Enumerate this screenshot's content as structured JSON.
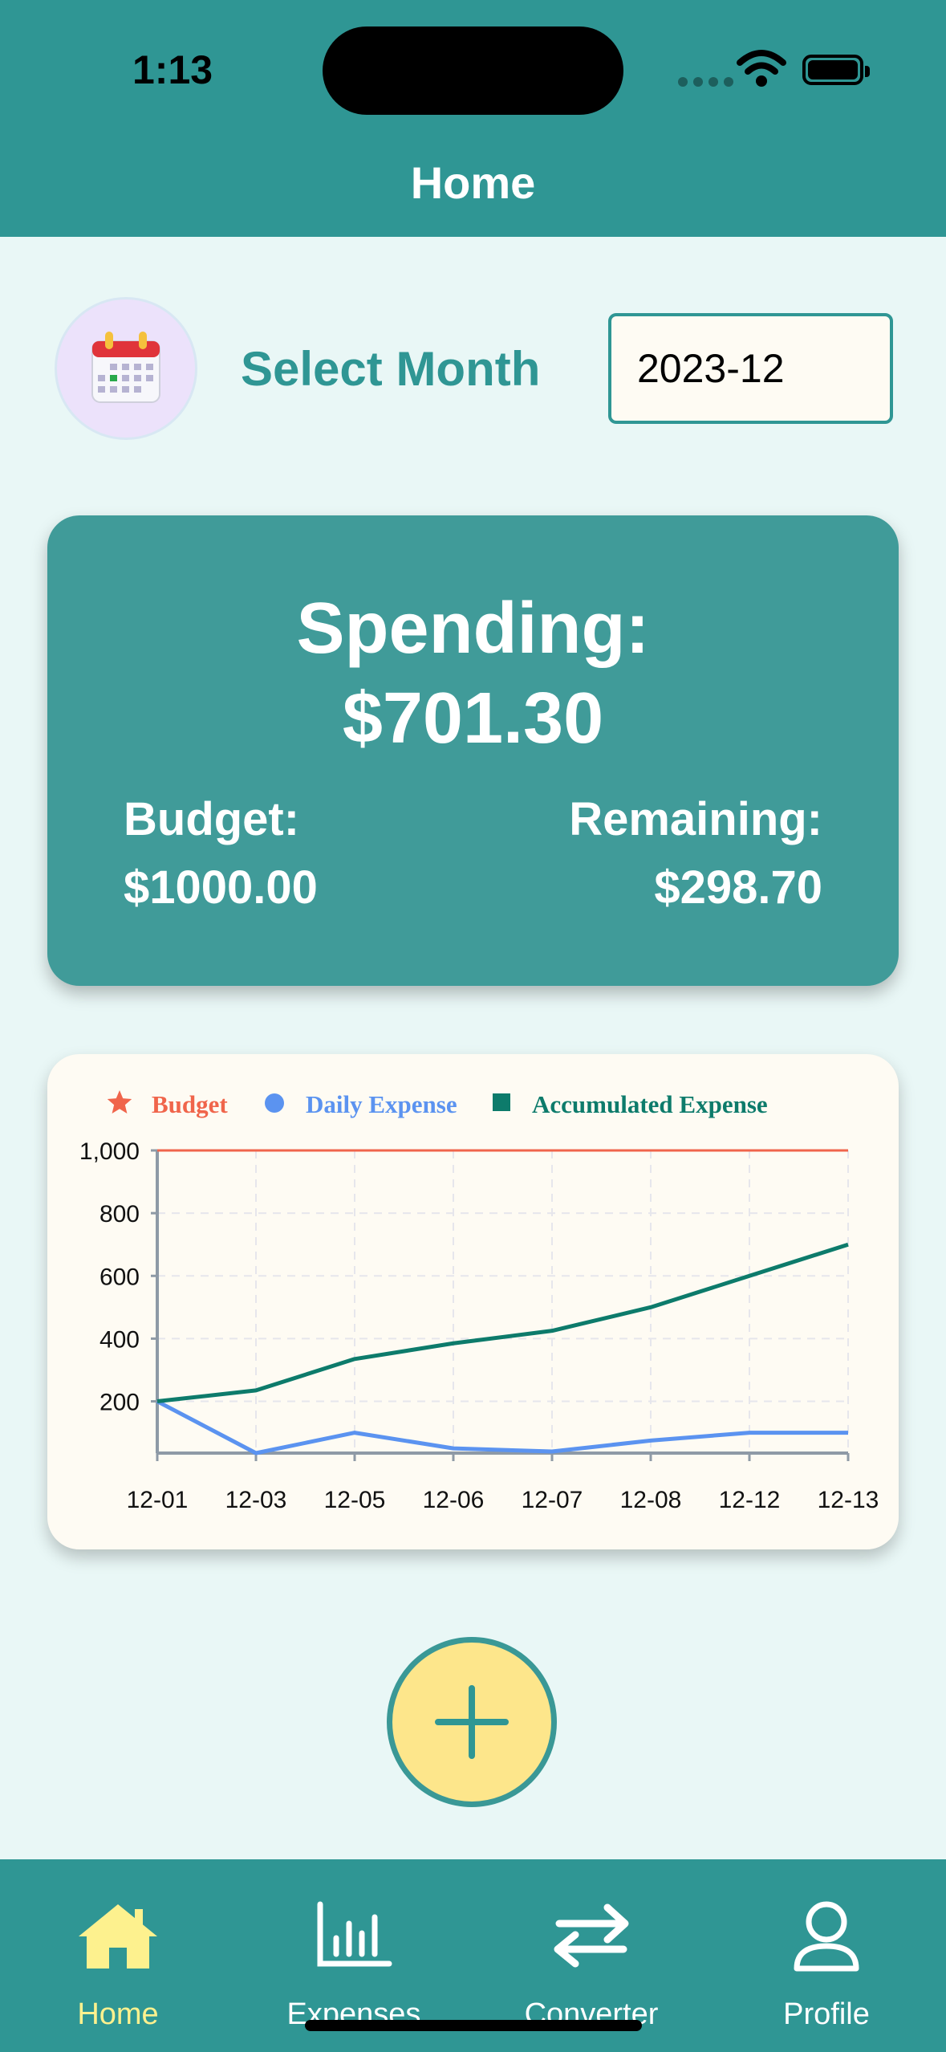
{
  "status_bar": {
    "time": "1:13"
  },
  "header": {
    "title": "Home"
  },
  "month_selector": {
    "label": "Select Month",
    "value": "2023-12",
    "icon": "calendar-icon"
  },
  "summary": {
    "spending_label": "Spending:",
    "spending_value": "$701.30",
    "budget_label": "Budget:",
    "budget_value": "$1000.00",
    "remaining_label": "Remaining:",
    "remaining_value": "$298.70"
  },
  "colors": {
    "primary": "#2f9694",
    "card": "#409b99",
    "budget": "#f0654b",
    "daily": "#5b93f0",
    "accumulated": "#0d7b6b",
    "active_tab": "#fdf18e",
    "add_button": "#fde68b"
  },
  "chart_data": {
    "type": "line",
    "x": [
      "12-01",
      "12-03",
      "12-05",
      "12-06",
      "12-07",
      "12-08",
      "12-12",
      "12-13"
    ],
    "series": [
      {
        "name": "Budget",
        "values": [
          1000,
          1000,
          1000,
          1000,
          1000,
          1000,
          1000,
          1000
        ]
      },
      {
        "name": "Daily Expense",
        "values": [
          200,
          35,
          100,
          50,
          40,
          75,
          100,
          100
        ]
      },
      {
        "name": "Accumulated Expense",
        "values": [
          200,
          235,
          335,
          385,
          425,
          500,
          600,
          700
        ]
      }
    ],
    "legend": [
      "Budget",
      "Daily Expense",
      "Accumulated Expense"
    ],
    "legend_markers": [
      "star",
      "circle",
      "square"
    ],
    "yticks": [
      "200",
      "400",
      "600",
      "800",
      "1,000"
    ],
    "ylim": [
      35,
      1000
    ],
    "grid": true,
    "legend_position": "top"
  },
  "add_button": {
    "icon": "plus-icon"
  },
  "tabs": [
    {
      "label": "Home",
      "icon": "house-icon",
      "active": true
    },
    {
      "label": "Expenses",
      "icon": "bar-chart-icon",
      "active": false
    },
    {
      "label": "Converter",
      "icon": "arrows-exchange-icon",
      "active": false
    },
    {
      "label": "Profile",
      "icon": "person-icon",
      "active": false
    }
  ]
}
